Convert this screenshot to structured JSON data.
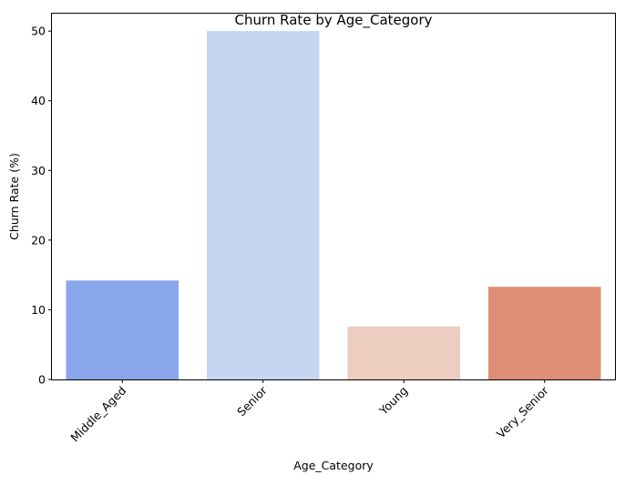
{
  "chart_data": {
    "type": "bar",
    "title": "Churn Rate by Age_Category",
    "xlabel": "Age_Category",
    "ylabel": "Churn Rate (%)",
    "categories": [
      "Middle_Aged",
      "Senior",
      "Young",
      "Very_Senior"
    ],
    "values": [
      14.2,
      50.0,
      7.6,
      13.3
    ],
    "colors": [
      "#8aa7eb",
      "#c6d5f1",
      "#edcdbf",
      "#de8f76"
    ],
    "ylim": [
      0,
      52.5
    ],
    "yticks": [
      0,
      10,
      20,
      30,
      40,
      50
    ],
    "grid": false,
    "legend": "none",
    "xtick_rotation": 45
  }
}
